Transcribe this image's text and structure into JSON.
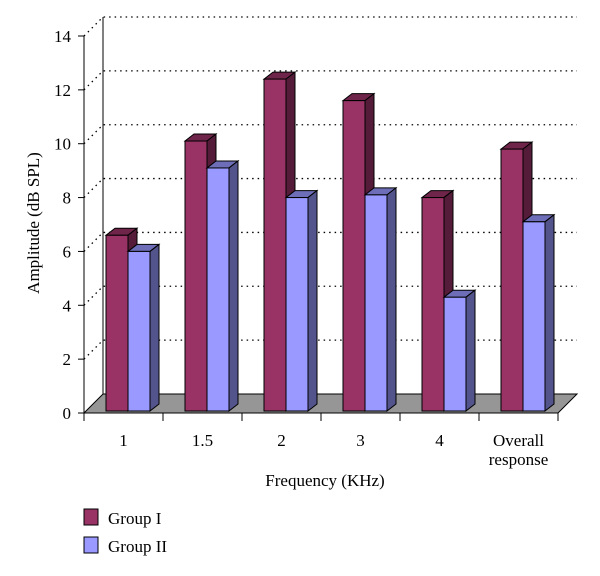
{
  "chart_data": {
    "type": "bar",
    "style": "3d-clustered-column",
    "categories": [
      [
        "1"
      ],
      [
        "1.5"
      ],
      [
        "2"
      ],
      [
        "3"
      ],
      [
        "4"
      ],
      [
        "Overall",
        "response"
      ]
    ],
    "series": [
      {
        "name": "Group I",
        "values": [
          6.6,
          10.1,
          12.4,
          11.6,
          8.0,
          9.8
        ],
        "color": "#993366"
      },
      {
        "name": "Group II",
        "values": [
          6.0,
          9.1,
          8.0,
          8.1,
          4.3,
          7.1
        ],
        "color": "#9999ff"
      }
    ],
    "xlabel": "Frequency (KHz)",
    "ylabel": "Amplitude (dB SPL)",
    "ylim": [
      0,
      14
    ],
    "yticks": [
      0,
      2,
      4,
      6,
      8,
      10,
      12,
      14
    ],
    "grid": "horizontal-dotted",
    "legend": "bottom-left",
    "colors": {
      "floor": "#969696",
      "gridline": "#000000"
    }
  }
}
